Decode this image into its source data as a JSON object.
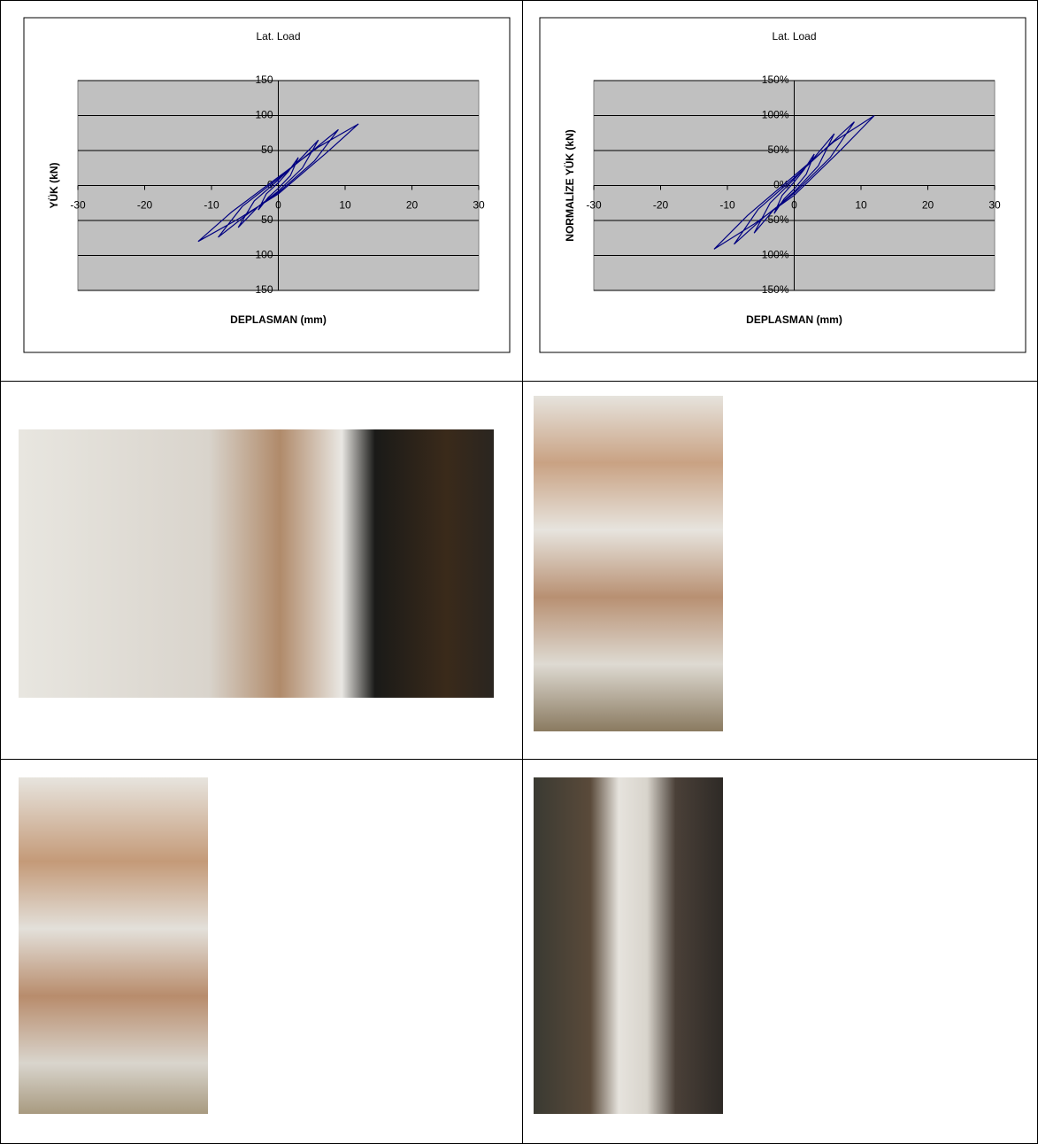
{
  "chart_data": [
    {
      "type": "line",
      "title": "Lat. Load",
      "x_label": "DEPLASMAN (mm)",
      "y_label": "YÜK (kN)",
      "xlim": [
        -30,
        30
      ],
      "ylim": [
        -150,
        150
      ],
      "xticks": [
        -30,
        -20,
        -10,
        0,
        10,
        20,
        30
      ],
      "yticks": [
        -150,
        -100,
        -50,
        0,
        50,
        100,
        150
      ],
      "grid": true,
      "plot_background": "#c0c0c0",
      "x": [
        0,
        1.5,
        3,
        1.8,
        0,
        -1.5,
        -3,
        -1.8,
        0,
        0,
        3,
        6,
        3.6,
        0,
        -3,
        -6,
        -3.6,
        0,
        0,
        4.5,
        9,
        5.4,
        0,
        -4.5,
        -9,
        -5.4,
        0,
        0,
        6,
        12,
        7,
        0,
        -6,
        -12,
        -7,
        0
      ],
      "series": [
        {
          "color": "#000080",
          "values": [
            4,
            20,
            40,
            14,
            -4,
            -17,
            -35,
            -12,
            4,
            8,
            35,
            65,
            25,
            -8,
            -30,
            -60,
            -22,
            8,
            10,
            45,
            80,
            35,
            -10,
            -40,
            -74,
            -30,
            10,
            12,
            55,
            88,
            45,
            -12,
            -48,
            -80,
            -38,
            12
          ]
        }
      ]
    },
    {
      "type": "line",
      "title": "Lat. Load",
      "x_label": "DEPLASMAN (mm)",
      "y_label": "NORMALİZE YÜK (kN)",
      "xlim": [
        -30,
        30
      ],
      "ylim": [
        -150,
        150
      ],
      "xticks": [
        -30,
        -20,
        -10,
        0,
        10,
        20,
        30
      ],
      "yticks": [
        {
          "value": -150,
          "label": "-150%"
        },
        {
          "value": -100,
          "label": "-100%"
        },
        {
          "value": -50,
          "label": "-50%"
        },
        {
          "value": 0,
          "label": "0%"
        },
        {
          "value": 50,
          "label": "50%"
        },
        {
          "value": 100,
          "label": "100%"
        },
        {
          "value": 150,
          "label": "150%"
        }
      ],
      "grid": true,
      "plot_background": "#c0c0c0",
      "x": [
        0,
        1.5,
        3,
        1.8,
        0,
        -1.5,
        -3,
        -1.8,
        0,
        0,
        3,
        6,
        3.6,
        0,
        -3,
        -6,
        -3.6,
        0,
        0,
        4.5,
        9,
        5.4,
        0,
        -4.5,
        -9,
        -5.4,
        0,
        0,
        6,
        12,
        7,
        0,
        -6,
        -12,
        -7,
        0
      ],
      "series": [
        {
          "color": "#000080",
          "values": [
            5,
            23,
            45,
            16,
            -5,
            -19,
            -40,
            -14,
            5,
            9,
            40,
            74,
            28,
            -9,
            -34,
            -68,
            -25,
            9,
            11,
            51,
            91,
            40,
            -11,
            -45,
            -84,
            -34,
            11,
            14,
            63,
            100,
            51,
            -14,
            -55,
            -91,
            -43,
            14
          ]
        }
      ]
    }
  ]
}
